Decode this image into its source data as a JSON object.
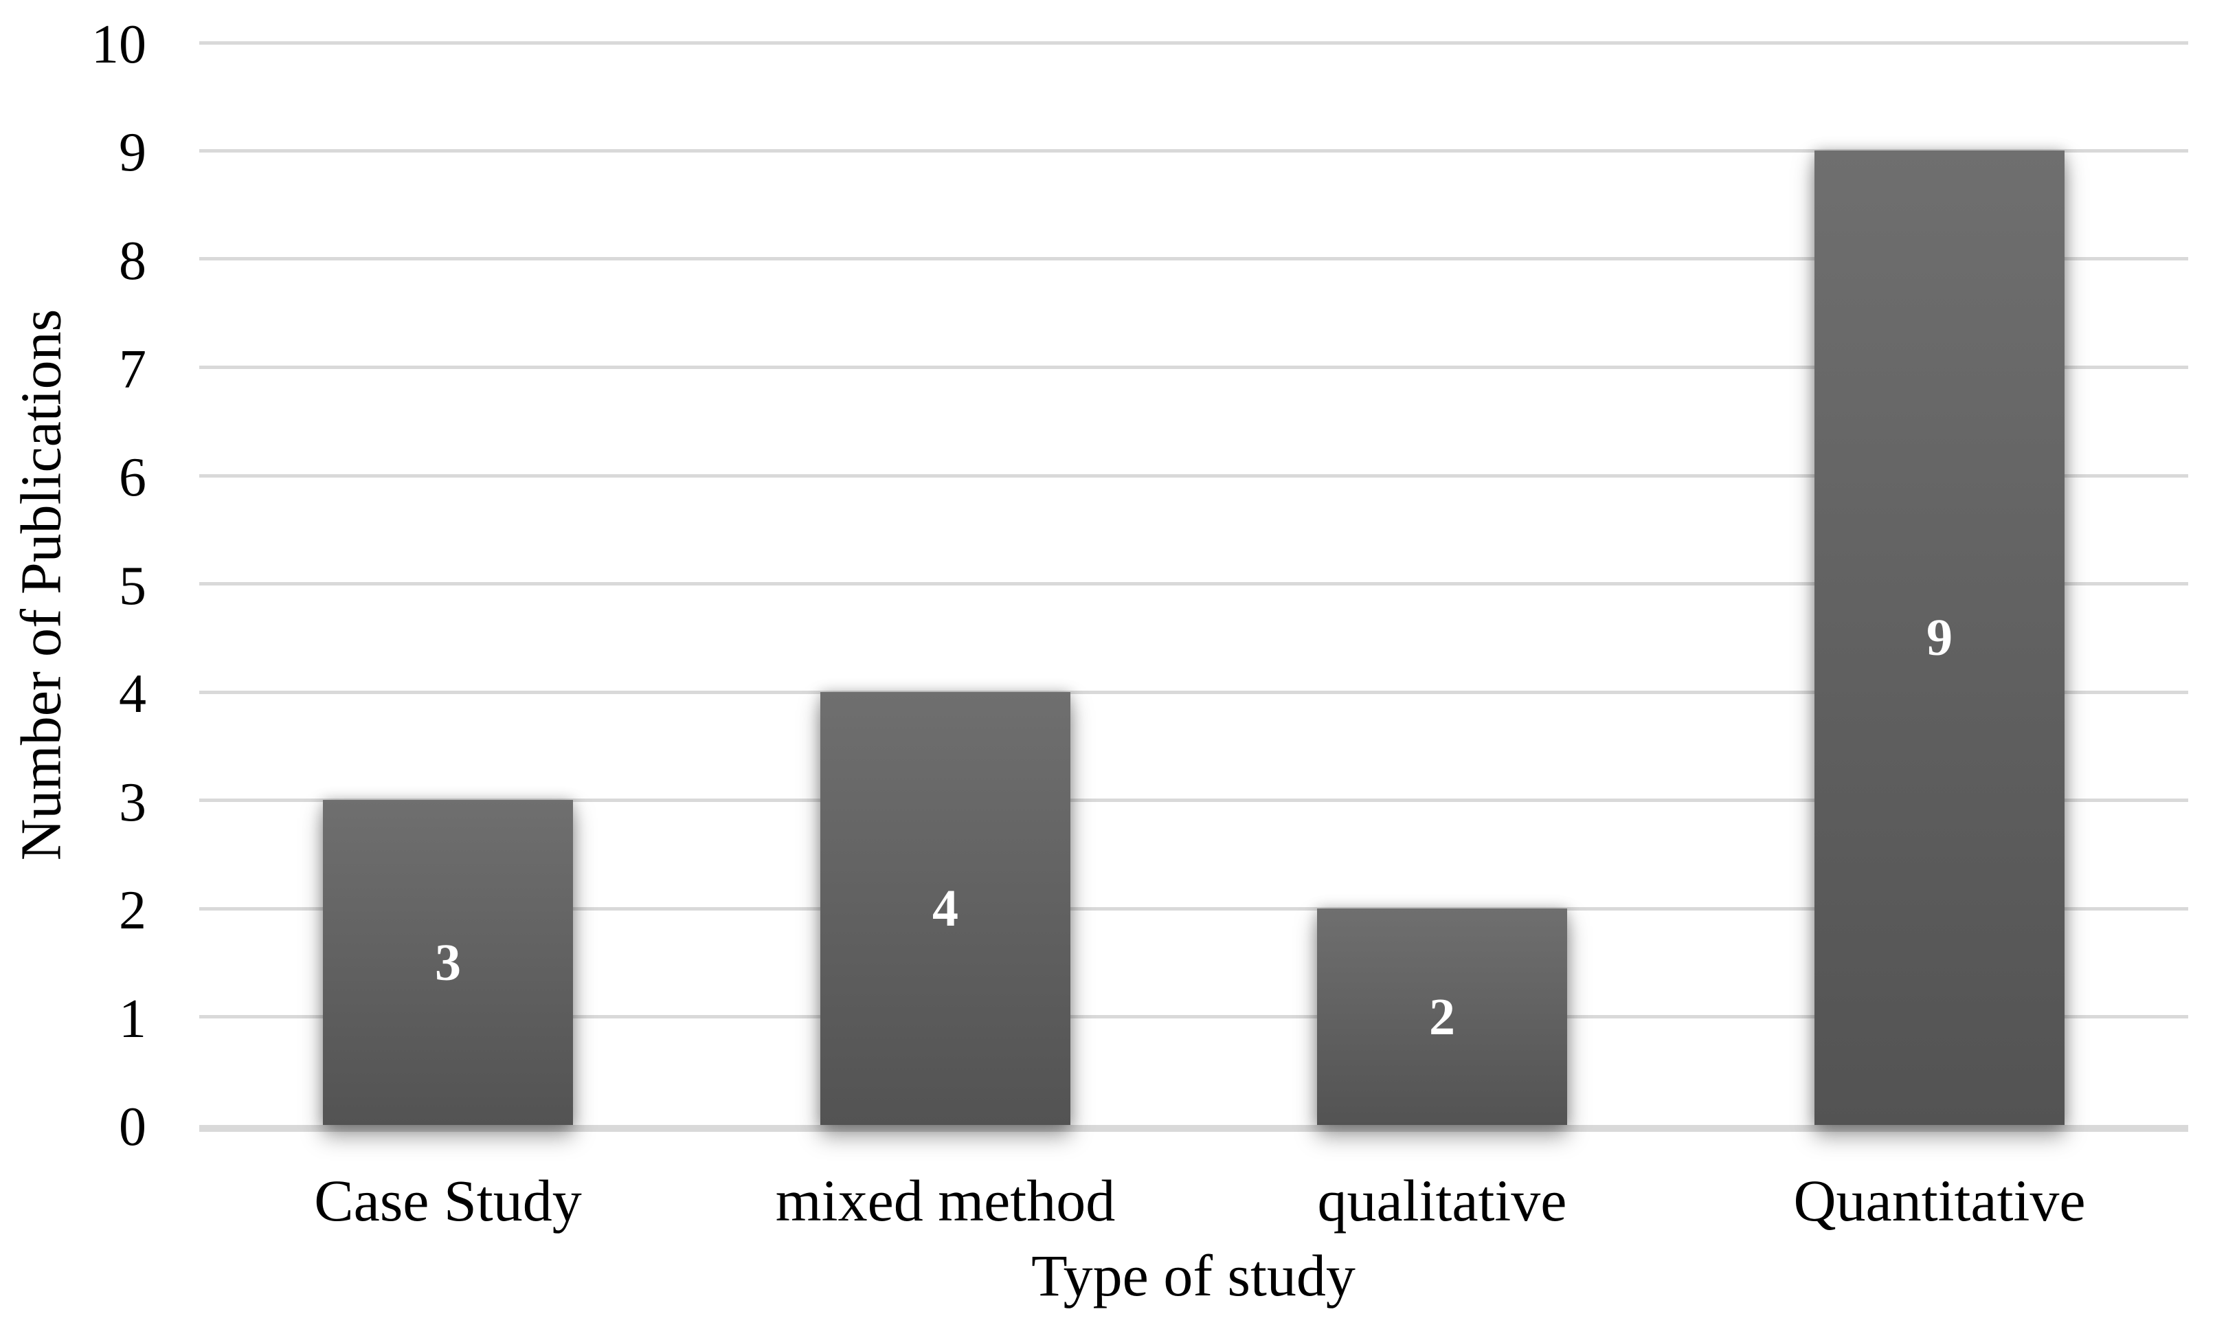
{
  "chart_data": {
    "type": "bar",
    "categories": [
      "Case Study",
      "mixed method",
      "qualitative",
      "Quantitative"
    ],
    "values": [
      3,
      4,
      2,
      9
    ],
    "bar_labels": [
      "3",
      "4",
      "2",
      "9"
    ],
    "title": "",
    "xlabel": "Type of study",
    "ylabel": "Number of Publications",
    "ylim": [
      0,
      10
    ],
    "ytick_step": 1,
    "yticks": [
      0,
      1,
      2,
      3,
      4,
      5,
      6,
      7,
      8,
      9,
      10
    ],
    "grid": "horizontal-on",
    "legend_position": "none",
    "bar_label_position": "inside-center",
    "colors": {
      "bar_gradient_top": "#6f6f6f",
      "bar_gradient_bottom": "#535353",
      "bar_value_label": "#ffffff",
      "gridline": "#d9d9d9",
      "axis_line": "#d9d9d9",
      "text": "#000000",
      "background": "#ffffff"
    }
  }
}
